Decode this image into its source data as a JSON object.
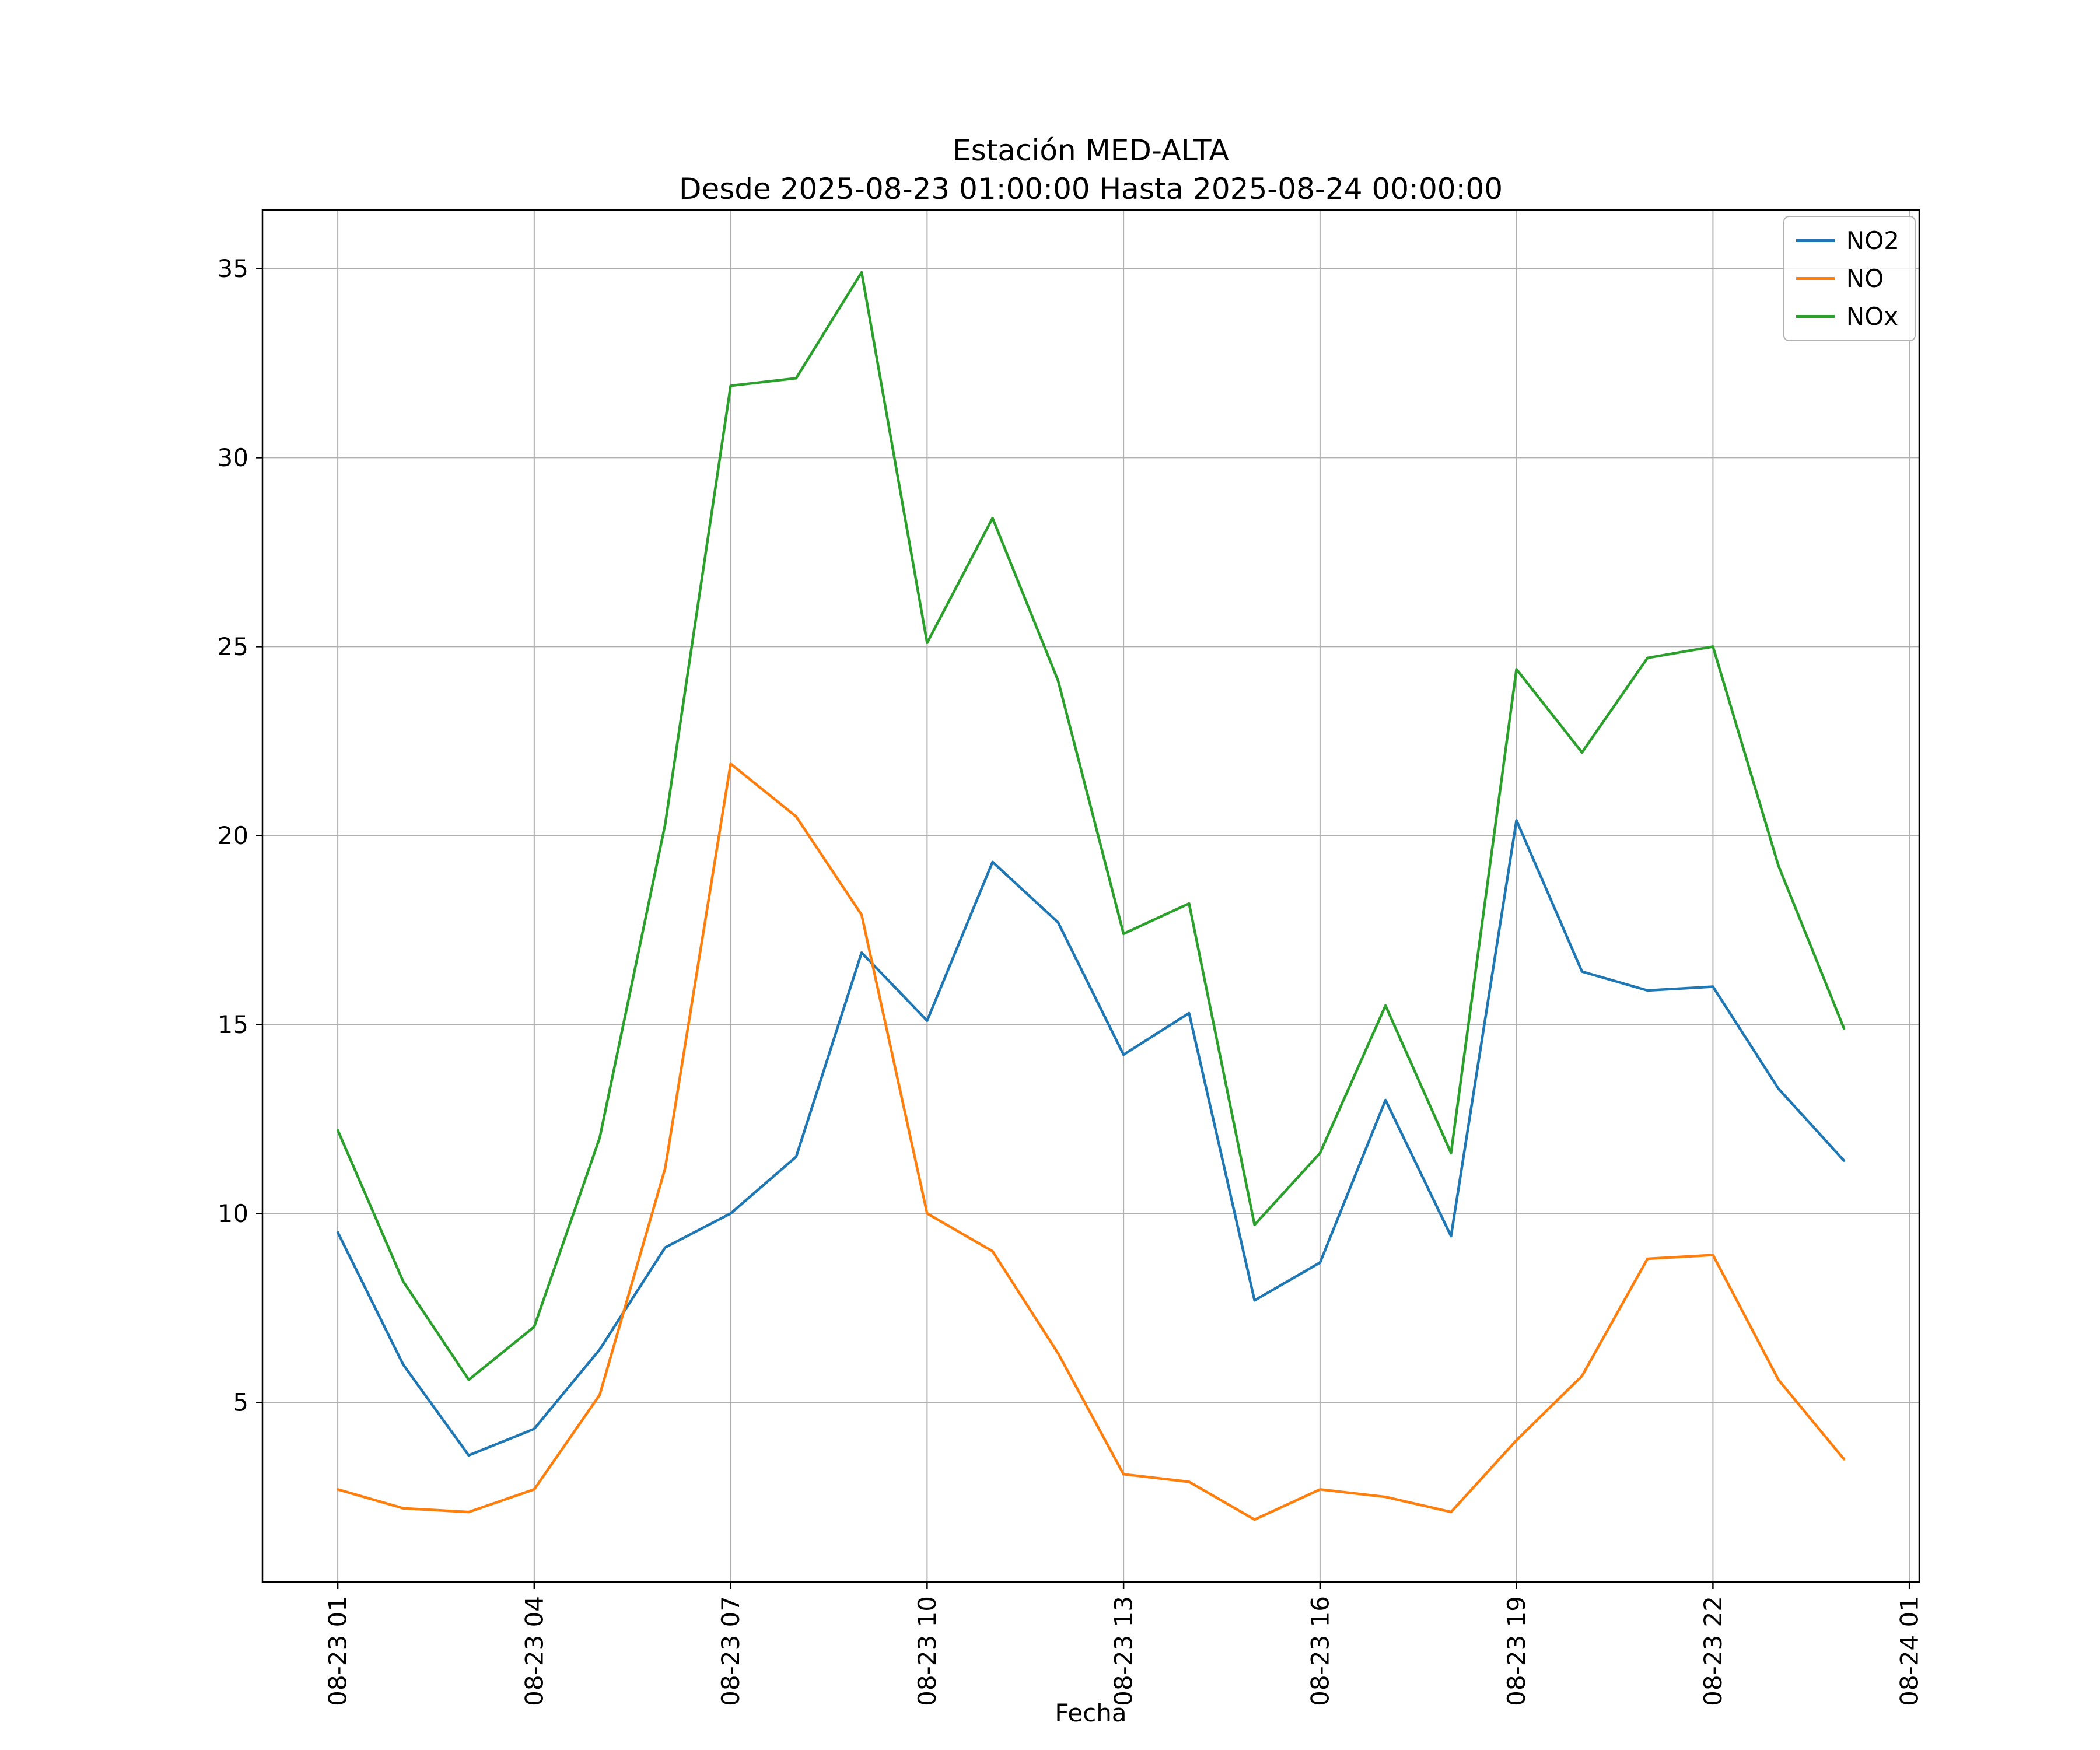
{
  "chart_data": {
    "type": "line",
    "title": "Estación MED-ALTA",
    "subtitle": "Desde 2025-08-23 01:00:00 Hasta 2025-08-24 00:00:00",
    "xlabel": "Fecha",
    "ylabel": "",
    "grid": true,
    "legend_position": "upper right",
    "colors": {
      "grid": "#b0b0b0",
      "spine": "#000000",
      "background": "#ffffff",
      "tick_text": "#000000"
    },
    "x_hours": [
      1,
      2,
      3,
      4,
      5,
      6,
      7,
      8,
      9,
      10,
      11,
      12,
      13,
      14,
      15,
      16,
      17,
      18,
      19,
      20,
      21,
      22,
      23,
      24
    ],
    "x_tick_positions": [
      1,
      4,
      7,
      10,
      13,
      16,
      19,
      22,
      25
    ],
    "x_tick_labels": [
      "08-23 01",
      "08-23 04",
      "08-23 07",
      "08-23 10",
      "08-23 13",
      "08-23 16",
      "08-23 19",
      "08-23 22",
      "08-24 01"
    ],
    "y_ticks": [
      5,
      10,
      15,
      20,
      25,
      30,
      35
    ],
    "xlim": [
      -0.15,
      25.15
    ],
    "ylim": [
      0.25,
      36.55
    ],
    "series": [
      {
        "name": "NO2",
        "color": "#1f77b4",
        "values": [
          9.5,
          6.0,
          3.6,
          4.3,
          6.4,
          9.1,
          10.0,
          11.5,
          16.9,
          15.1,
          19.3,
          17.7,
          14.2,
          15.3,
          7.7,
          8.7,
          13.0,
          9.4,
          20.4,
          16.4,
          15.9,
          16.0,
          13.3,
          11.4
        ]
      },
      {
        "name": "NO",
        "color": "#ff7f0e",
        "values": [
          2.7,
          2.2,
          2.1,
          2.7,
          5.2,
          11.2,
          21.9,
          20.5,
          17.9,
          10.0,
          9.0,
          6.3,
          3.1,
          2.9,
          1.9,
          2.7,
          2.5,
          2.1,
          4.0,
          5.7,
          8.8,
          8.9,
          5.6,
          3.5
        ]
      },
      {
        "name": "NOx",
        "color": "#2ca02c",
        "values": [
          12.2,
          8.2,
          5.6,
          7.0,
          12.0,
          20.3,
          31.9,
          32.1,
          34.9,
          25.1,
          28.4,
          24.1,
          17.4,
          18.2,
          9.7,
          11.6,
          15.5,
          11.6,
          24.4,
          22.2,
          24.7,
          25.0,
          19.2,
          14.9
        ]
      }
    ]
  }
}
